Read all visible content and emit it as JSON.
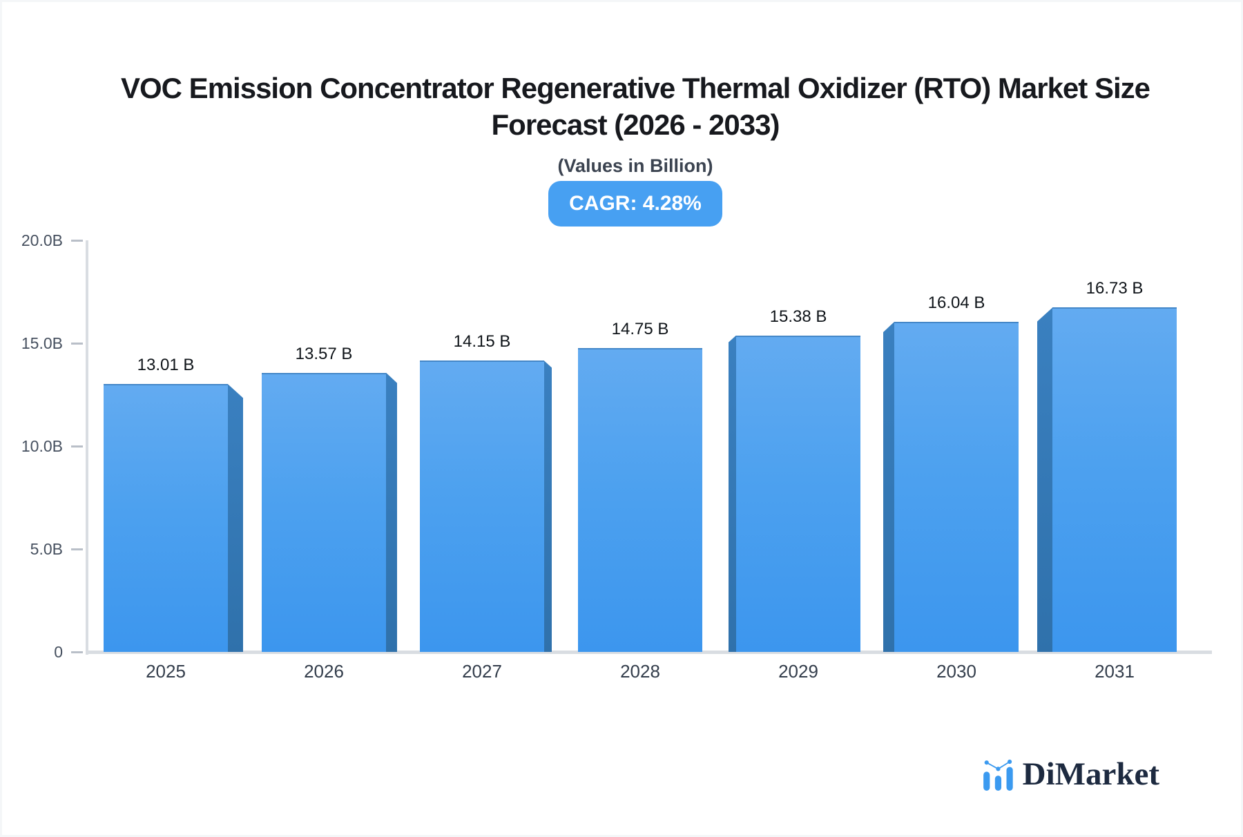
{
  "header": {
    "title_line1": "VOC Emission Concentrator Regenerative Thermal Oxidizer (RTO) Market Size",
    "title_line2": "Forecast (2026 - 2033)",
    "subtitle": "(Values in Billion)",
    "cagr_badge": "CAGR: 4.28%"
  },
  "chart_data": {
    "type": "bar",
    "title": "VOC Emission Concentrator Regenerative Thermal Oxidizer (RTO) Market Size Forecast (2026 - 2033)",
    "subtitle": "(Values in Billion)",
    "cagr_label": "CAGR: 4.28%",
    "cagr_percent": 4.28,
    "categories": [
      "2025",
      "2026",
      "2027",
      "2028",
      "2029",
      "2030",
      "2031"
    ],
    "values": [
      13.01,
      13.57,
      14.15,
      14.75,
      15.38,
      16.04,
      16.73
    ],
    "value_labels": [
      "13.01 B",
      "13.57 B",
      "14.15 B",
      "14.75 B",
      "15.38 B",
      "16.04 B",
      "16.73 B"
    ],
    "xlabel": "",
    "ylabel": "",
    "ylim": [
      0,
      20
    ],
    "yticks": [
      {
        "value": 0,
        "label": "0"
      },
      {
        "value": 5,
        "label": "5.0B"
      },
      {
        "value": 10,
        "label": "10.0B"
      },
      {
        "value": 15,
        "label": "15.0B"
      },
      {
        "value": 20,
        "label": "20.0B"
      }
    ],
    "grid": false,
    "legend": false,
    "bar_style": "3d-perspective",
    "colors": {
      "bar_top": "#63abf1",
      "bar_bottom": "#3c96ee",
      "bar_side": "#3379b5",
      "axis": "#d9dde2",
      "badge_bg": "#47a0f2",
      "badge_text": "#ffffff"
    }
  },
  "footer": {
    "logo_text": "DiMarket",
    "logo_icon": "bar-chart-with-trend-dots-icon",
    "logo_color": "#3b9af0"
  }
}
